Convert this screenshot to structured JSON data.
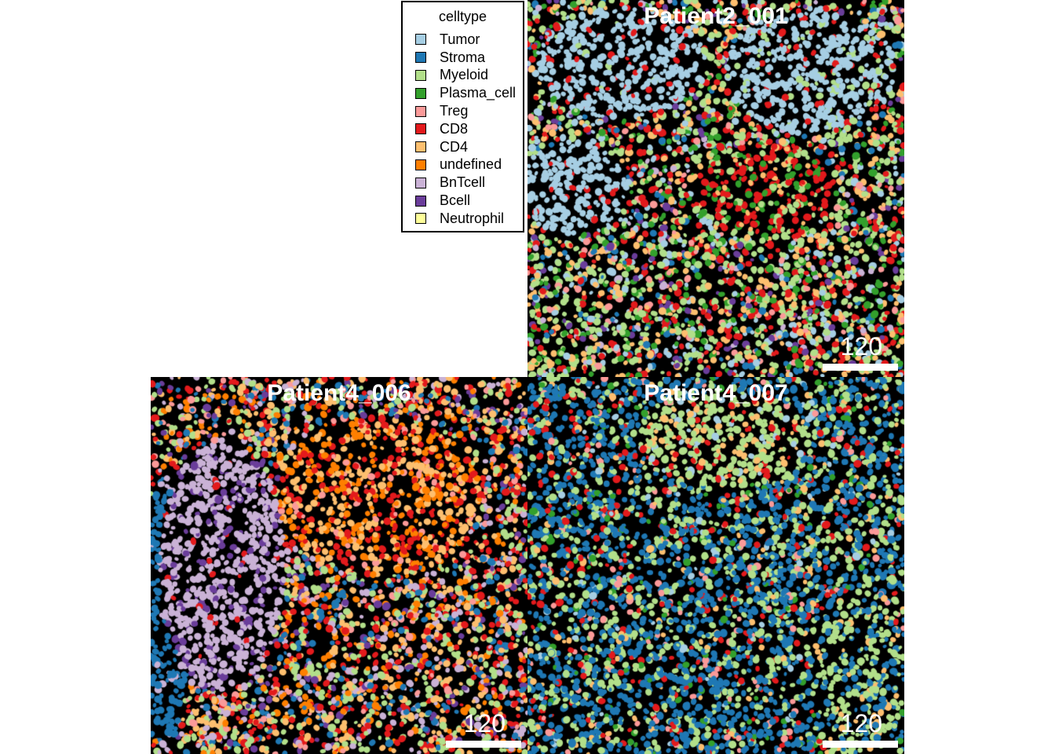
{
  "legend": {
    "title": "celltype",
    "items": [
      {
        "label": "Tumor",
        "color": "#a6cee3"
      },
      {
        "label": "Stroma",
        "color": "#1f78b4"
      },
      {
        "label": "Myeloid",
        "color": "#b2df8a"
      },
      {
        "label": "Plasma_cell",
        "color": "#33a02c"
      },
      {
        "label": "Treg",
        "color": "#fb9a99"
      },
      {
        "label": "CD8",
        "color": "#e31a1c"
      },
      {
        "label": "CD4",
        "color": "#fdbf6f"
      },
      {
        "label": "undefined",
        "color": "#ff7f00"
      },
      {
        "label": "BnTcell",
        "color": "#cab2d6"
      },
      {
        "label": "Bcell",
        "color": "#6a3d9a"
      },
      {
        "label": "Neutrophil",
        "color": "#ffff99"
      }
    ]
  },
  "panels": [
    {
      "title": "Patient2_001",
      "scale_label": "120",
      "dominant": [
        "Tumor",
        "Myeloid",
        "CD8",
        "Plasma_cell"
      ]
    },
    {
      "title": "Patient4_006",
      "scale_label": "120",
      "dominant": [
        "BnTcell",
        "CD8",
        "undefined",
        "CD4"
      ]
    },
    {
      "title": "Patient4_007",
      "scale_label": "120",
      "dominant": [
        "Stroma",
        "Myeloid",
        "CD8"
      ]
    }
  ]
}
